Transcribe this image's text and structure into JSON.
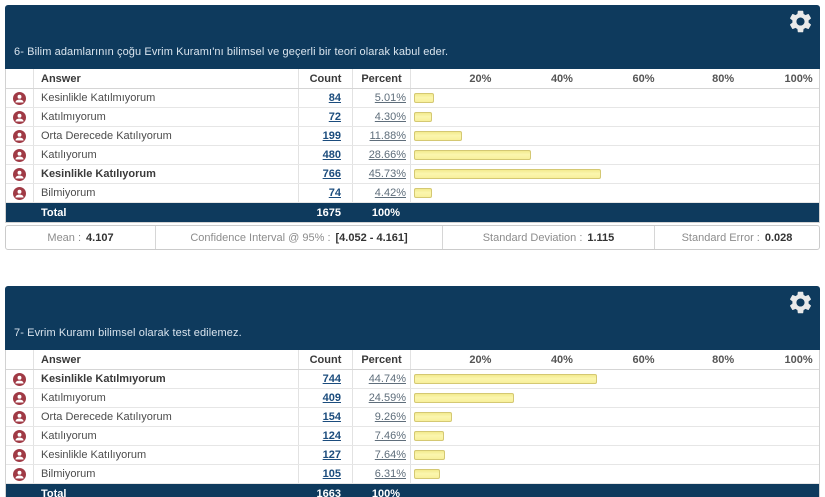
{
  "colors": {
    "header_navy": "#0E3A5D",
    "bar_fill": "#FBF6AE",
    "bar_border": "#D4C873",
    "count_link": "#1B4C7D",
    "badge_red": "#A03A45"
  },
  "panels": [
    {
      "question": "6- Bilim adamlarının çoğu Evrim Kuramı'nı bilimsel ve geçerli bir teori olarak kabul eder.",
      "columns": {
        "answer": "Answer",
        "count": "Count",
        "percent": "Percent"
      },
      "axis": [
        "20%",
        "40%",
        "60%",
        "80%",
        "100%"
      ],
      "rows": [
        {
          "label": "Kesinlikle Katılmıyorum",
          "count": "84",
          "percent": "5.01%",
          "value": 5.01
        },
        {
          "label": "Katılmıyorum",
          "count": "72",
          "percent": "4.30%",
          "value": 4.3
        },
        {
          "label": "Orta Derecede Katılıyorum",
          "count": "199",
          "percent": "11.88%",
          "value": 11.88
        },
        {
          "label": "Katılıyorum",
          "count": "480",
          "percent": "28.66%",
          "value": 28.66
        },
        {
          "label": "Kesinlikle Katılıyorum",
          "count": "766",
          "percent": "45.73%",
          "value": 45.73
        },
        {
          "label": "Bilmiyorum",
          "count": "74",
          "percent": "4.42%",
          "value": 4.42
        }
      ],
      "total": {
        "label": "Total",
        "count": "1675",
        "percent": "100%"
      },
      "stats": [
        {
          "label": "Mean :",
          "value": "4.107"
        },
        {
          "label": "Confidence Interval @ 95% :",
          "value": "[4.052 - 4.161]"
        },
        {
          "label": "Standard Deviation :",
          "value": "1.115"
        },
        {
          "label": "Standard Error :",
          "value": "0.028"
        }
      ]
    },
    {
      "question": "7- Evrim Kuramı bilimsel olarak test edilemez.",
      "columns": {
        "answer": "Answer",
        "count": "Count",
        "percent": "Percent"
      },
      "axis": [
        "20%",
        "40%",
        "60%",
        "80%",
        "100%"
      ],
      "rows": [
        {
          "label": "Kesinlikle Katılmıyorum",
          "count": "744",
          "percent": "44.74%",
          "value": 44.74
        },
        {
          "label": "Katılmıyorum",
          "count": "409",
          "percent": "24.59%",
          "value": 24.59
        },
        {
          "label": "Orta Derecede Katılıyorum",
          "count": "154",
          "percent": "9.26%",
          "value": 9.26
        },
        {
          "label": "Katılıyorum",
          "count": "124",
          "percent": "7.46%",
          "value": 7.46
        },
        {
          "label": "Kesinlikle Katılıyorum",
          "count": "127",
          "percent": "7.64%",
          "value": 7.64
        },
        {
          "label": "Bilmiyorum",
          "count": "105",
          "percent": "6.31%",
          "value": 6.31
        }
      ],
      "total": {
        "label": "Total",
        "count": "1663",
        "percent": "100%"
      }
    }
  ],
  "chart_data": [
    {
      "type": "bar",
      "orientation": "horizontal",
      "title": "6- Bilim adamlarının çoğu Evrim Kuramı'nı bilimsel ve geçerli bir teori olarak kabul eder.",
      "categories": [
        "Kesinlikle Katılmıyorum",
        "Katılmıyorum",
        "Orta Derecede Katılıyorum",
        "Katılıyorum",
        "Kesinlikle Katılıyorum",
        "Bilmiyorum"
      ],
      "values": [
        5.01,
        4.3,
        11.88,
        28.66,
        45.73,
        4.42
      ],
      "counts": [
        84,
        72,
        199,
        480,
        766,
        74
      ],
      "total": 1675,
      "xlabel": "Percent",
      "ylabel": "Answer",
      "xlim": [
        0,
        100
      ],
      "tick_labels": [
        "20%",
        "40%",
        "60%",
        "80%",
        "100%"
      ],
      "grid": false,
      "legend": false
    },
    {
      "type": "bar",
      "orientation": "horizontal",
      "title": "7- Evrim Kuramı bilimsel olarak test edilemez.",
      "categories": [
        "Kesinlikle Katılmıyorum",
        "Katılmıyorum",
        "Orta Derecede Katılıyorum",
        "Katılıyorum",
        "Kesinlikle Katılıyorum",
        "Bilmiyorum"
      ],
      "values": [
        44.74,
        24.59,
        9.26,
        7.46,
        7.64,
        6.31
      ],
      "counts": [
        744,
        409,
        154,
        124,
        127,
        105
      ],
      "total": 1663,
      "xlabel": "Percent",
      "ylabel": "Answer",
      "xlim": [
        0,
        100
      ],
      "tick_labels": [
        "20%",
        "40%",
        "60%",
        "80%",
        "100%"
      ],
      "grid": false,
      "legend": false
    }
  ]
}
